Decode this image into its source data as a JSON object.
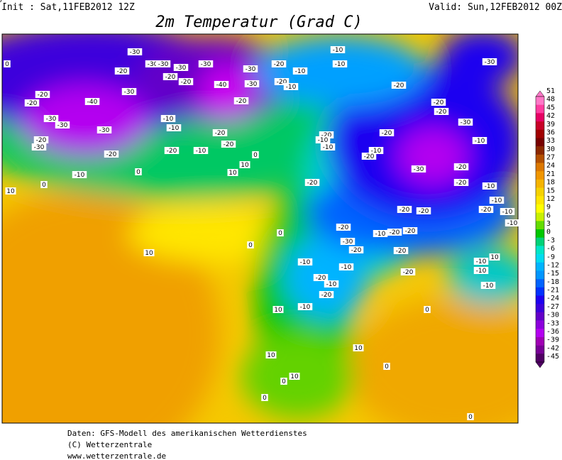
{
  "header": {
    "init": "Init : Sat,11FEB2012 12Z",
    "valid": "Valid: Sun,12FEB2012 00Z",
    "title": "2m Temperatur (Grad C)"
  },
  "colorbar": {
    "labels": [
      51,
      48,
      45,
      42,
      39,
      36,
      33,
      30,
      27,
      24,
      21,
      18,
      15,
      12,
      9,
      6,
      3,
      0,
      -3,
      -6,
      -9,
      -12,
      -15,
      -18,
      -21,
      -24,
      -27,
      -30,
      -33,
      -36,
      -39,
      -42,
      -45
    ],
    "colors": [
      "#ff78c8",
      "#ff3ca0",
      "#e60064",
      "#c80028",
      "#a00000",
      "#780000",
      "#8c2800",
      "#b45000",
      "#dc7800",
      "#f09600",
      "#f5b400",
      "#f5d200",
      "#ffe600",
      "#ffff00",
      "#c8f000",
      "#64dc00",
      "#00c800",
      "#00d278",
      "#00e6c8",
      "#00dcf0",
      "#00b4ff",
      "#0096ff",
      "#0064ff",
      "#0032ff",
      "#1e00f0",
      "#3c00dc",
      "#6400c8",
      "#8c00dc",
      "#b400f0",
      "#a000b4",
      "#780096",
      "#500064"
    ]
  },
  "map": {
    "contour_labels": [
      "-30",
      "-30",
      "-20",
      "-20",
      "-20",
      "-30",
      "-30",
      "-40",
      "-30",
      "-20",
      "-30",
      "-20",
      "-10",
      "0",
      "10",
      "-30",
      "-30",
      "-20",
      "-30",
      "-20",
      "-30",
      "-40",
      "-30",
      "-30",
      "-20",
      "-20",
      "-10",
      "-20",
      "-10",
      "-10",
      "-10",
      "-20",
      "-10",
      "-20",
      "-20",
      "0",
      "10",
      "0",
      "-10",
      "-10",
      "-20",
      "-30",
      "-20",
      "-20",
      "-30",
      "-20",
      "-20",
      "-10",
      "-10",
      "-20",
      "-10",
      "-20",
      "-30",
      "-20",
      "-20",
      "-10",
      "-10",
      "-20",
      "-20",
      "-20",
      "-10",
      "-10",
      "-20",
      "-10",
      "-20",
      "-20",
      "-30",
      "-20",
      "-20",
      "-10",
      "-10",
      "-20",
      "-10",
      "-20",
      "-10",
      "-10",
      "-10",
      "-10",
      "-20",
      "-10",
      "0",
      "0",
      "10",
      "10",
      "0",
      "10",
      "0",
      "10",
      "10",
      "0",
      "0",
      "0",
      "10",
      "0",
      "10",
      "0"
    ]
  },
  "footer": {
    "lines": [
      "Daten: GFS-Modell des amerikanischen Wetterdienstes",
      "(C) Wetterzentrale",
      "www.wetterzentrale.de"
    ]
  }
}
